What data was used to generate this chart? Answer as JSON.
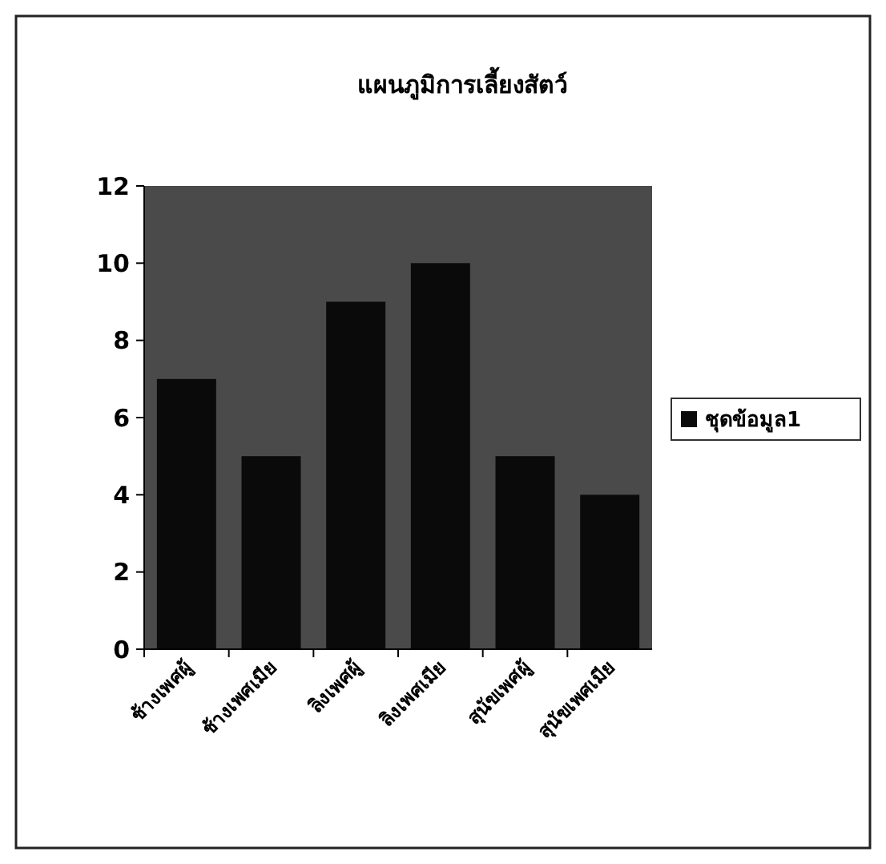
{
  "chart_data": {
    "type": "bar",
    "title": "แผนภูมิการเลี้ยงสัตว์",
    "categories": [
      "ช้างเพศผู้",
      "ช้างเพศเมีย",
      "ลิงเพศผู้",
      "ลิงเพศเมีย",
      "สุนัขเพศผู้",
      "สุนัขเพศเมีย"
    ],
    "series": [
      {
        "name": "ชุดข้อมูล1",
        "color": "#0a0a0a",
        "values": [
          7,
          5,
          9,
          10,
          5,
          4
        ]
      }
    ],
    "ylim": [
      0,
      12
    ],
    "yticks": [
      0,
      2,
      4,
      6,
      8,
      10,
      12
    ],
    "grid": false,
    "legend": "right"
  }
}
